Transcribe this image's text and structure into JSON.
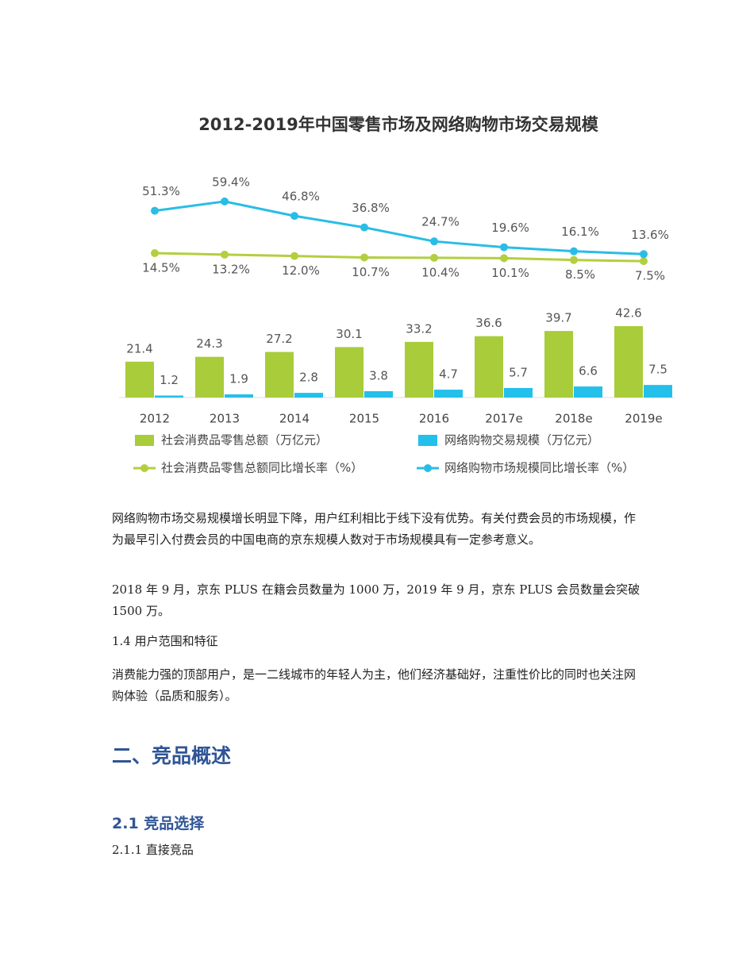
{
  "chart_data": {
    "type": "combo",
    "title": "2012-2019年中国零售市场及网络购物市场交易规模",
    "categories": [
      "2012",
      "2013",
      "2014",
      "2015",
      "2016",
      "2017e",
      "2018e",
      "2019e"
    ],
    "series": [
      {
        "name": "社会消费品零售总额（万亿元）",
        "type": "bar",
        "color": "#a8cc3a",
        "values": [
          21.4,
          24.3,
          27.2,
          30.1,
          33.2,
          36.6,
          39.7,
          42.6
        ]
      },
      {
        "name": "网络购物交易规模（万亿元）",
        "type": "bar",
        "color": "#22c0ea",
        "values": [
          1.2,
          1.9,
          2.8,
          3.8,
          4.7,
          5.7,
          6.6,
          7.5
        ]
      },
      {
        "name": "社会消费品零售总额同比增长率（%）",
        "type": "line",
        "color": "#b3cf3f",
        "values": [
          14.5,
          13.2,
          12,
          10.7,
          10.4,
          10.1,
          8.5,
          7.5
        ],
        "value_labels": [
          "14.5%",
          "13.2%",
          "12.0%",
          "10.7%",
          "10.4%",
          "10.1%",
          "8.5%",
          "7.5%"
        ]
      },
      {
        "name": "网络购物市场规模同比增长率（%）",
        "type": "line",
        "color": "#29bde6",
        "values": [
          51.3,
          59.4,
          46.8,
          36.8,
          24.7,
          19.6,
          16.1,
          13.6
        ],
        "value_labels": [
          "51.3%",
          "59.4%",
          "46.8%",
          "36.8%",
          "24.7%",
          "19.6%",
          "16.1%",
          "13.6%"
        ]
      }
    ]
  },
  "document": {
    "paragraphs": [
      "网络购物市场交易规模增长明显下降，用户红利相比于线下没有优势。有关付费会员的市场规模，作为最早引入付费会员的中国电商的京东规模人数对于市场规模具有一定参考意义。",
      "2018 年 9 月，京东 PLUS 在籍会员数量为 1000 万，2019 年 9 月，京东 PLUS 会员数量会突破 1500 万。"
    ],
    "section_1_4": "1.4 用户范围和特征",
    "paragraph_1_4": "消费能力强的顶部用户，是一二线城市的年轻人为主，他们经济基础好，注重性价比的同时也关注网购体验（品质和服务）。",
    "heading_2": "二、竞品概述",
    "heading_2_1": "2.1 竞品选择",
    "heading_2_1_1": "2.1.1 直接竞品"
  }
}
